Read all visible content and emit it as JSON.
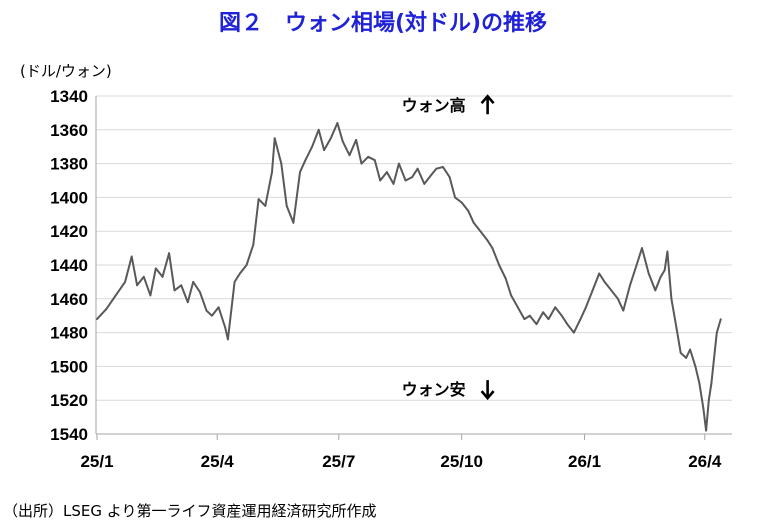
{
  "chart_data": {
    "type": "line",
    "title": "図２　ウォン相場(対ドル)の推移",
    "ylabel": "(ドル/ウォン)",
    "xlabel": "",
    "y_inverted": true,
    "ylim": [
      1340,
      1540
    ],
    "yticks": [
      1340,
      1360,
      1380,
      1400,
      1420,
      1440,
      1460,
      1480,
      1500,
      1520,
      1540
    ],
    "xlim": [
      "2025-01-01",
      "2026-04-15"
    ],
    "xticks": [
      {
        "label": "25/1",
        "date": "2025-01-01"
      },
      {
        "label": "25/4",
        "date": "2025-04-01"
      },
      {
        "label": "25/7",
        "date": "2025-07-01"
      },
      {
        "label": "25/10",
        "date": "2025-10-01"
      },
      {
        "label": "26/1",
        "date": "2026-01-01"
      },
      {
        "label": "26/4",
        "date": "2026-04-01"
      }
    ],
    "grid": true,
    "annotations": [
      {
        "text": "ウォン高",
        "arrow": "up",
        "at": {
          "date": "2025-09-10",
          "value": 1349
        }
      },
      {
        "text": "ウォン安",
        "arrow": "down",
        "at": {
          "date": "2025-09-10",
          "value": 1517
        }
      }
    ],
    "series": [
      {
        "color": "#595959",
        "points": [
          [
            "2025-01-01",
            1472
          ],
          [
            "2025-01-08",
            1466
          ],
          [
            "2025-01-15",
            1458
          ],
          [
            "2025-01-22",
            1450
          ],
          [
            "2025-01-27",
            1435
          ],
          [
            "2025-01-31",
            1452
          ],
          [
            "2025-02-05",
            1447
          ],
          [
            "2025-02-10",
            1458
          ],
          [
            "2025-02-14",
            1442
          ],
          [
            "2025-02-19",
            1447
          ],
          [
            "2025-02-24",
            1433
          ],
          [
            "2025-02-28",
            1455
          ],
          [
            "2025-03-05",
            1452
          ],
          [
            "2025-03-10",
            1462
          ],
          [
            "2025-03-14",
            1450
          ],
          [
            "2025-03-19",
            1456
          ],
          [
            "2025-03-24",
            1467
          ],
          [
            "2025-03-28",
            1470
          ],
          [
            "2025-04-02",
            1465
          ],
          [
            "2025-04-07",
            1477
          ],
          [
            "2025-04-09",
            1484
          ],
          [
            "2025-04-14",
            1450
          ],
          [
            "2025-04-18",
            1445
          ],
          [
            "2025-04-23",
            1440
          ],
          [
            "2025-04-28",
            1428
          ],
          [
            "2025-05-02",
            1401
          ],
          [
            "2025-05-07",
            1405
          ],
          [
            "2025-05-12",
            1385
          ],
          [
            "2025-05-14",
            1365
          ],
          [
            "2025-05-19",
            1380
          ],
          [
            "2025-05-23",
            1405
          ],
          [
            "2025-05-28",
            1415
          ],
          [
            "2025-06-02",
            1385
          ],
          [
            "2025-06-06",
            1378
          ],
          [
            "2025-06-11",
            1370
          ],
          [
            "2025-06-16",
            1360
          ],
          [
            "2025-06-20",
            1372
          ],
          [
            "2025-06-25",
            1365
          ],
          [
            "2025-06-30",
            1356
          ],
          [
            "2025-07-04",
            1367
          ],
          [
            "2025-07-09",
            1375
          ],
          [
            "2025-07-14",
            1366
          ],
          [
            "2025-07-18",
            1380
          ],
          [
            "2025-07-23",
            1376
          ],
          [
            "2025-07-28",
            1378
          ],
          [
            "2025-08-01",
            1390
          ],
          [
            "2025-08-06",
            1385
          ],
          [
            "2025-08-11",
            1392
          ],
          [
            "2025-08-15",
            1380
          ],
          [
            "2025-08-20",
            1390
          ],
          [
            "2025-08-25",
            1388
          ],
          [
            "2025-08-29",
            1383
          ],
          [
            "2025-09-03",
            1392
          ],
          [
            "2025-09-08",
            1387
          ],
          [
            "2025-09-12",
            1383
          ],
          [
            "2025-09-17",
            1382
          ],
          [
            "2025-09-22",
            1388
          ],
          [
            "2025-09-26",
            1400
          ],
          [
            "2025-10-01",
            1403
          ],
          [
            "2025-10-06",
            1408
          ],
          [
            "2025-10-10",
            1415
          ],
          [
            "2025-10-15",
            1420
          ],
          [
            "2025-10-20",
            1425
          ],
          [
            "2025-10-24",
            1430
          ],
          [
            "2025-10-29",
            1440
          ],
          [
            "2025-11-03",
            1448
          ],
          [
            "2025-11-07",
            1458
          ],
          [
            "2025-11-12",
            1465
          ],
          [
            "2025-11-17",
            1472
          ],
          [
            "2025-11-21",
            1470
          ],
          [
            "2025-11-26",
            1475
          ],
          [
            "2025-12-01",
            1468
          ],
          [
            "2025-12-05",
            1472
          ],
          [
            "2025-12-10",
            1465
          ],
          [
            "2025-12-15",
            1470
          ],
          [
            "2025-12-19",
            1475
          ],
          [
            "2025-12-24",
            1480
          ],
          [
            "2025-12-29",
            1472
          ],
          [
            "2026-01-02",
            1465
          ],
          [
            "2026-01-07",
            1455
          ],
          [
            "2026-01-12",
            1445
          ],
          [
            "2026-01-16",
            1450
          ],
          [
            "2026-01-21",
            1455
          ],
          [
            "2026-01-26",
            1460
          ],
          [
            "2026-01-30",
            1467
          ],
          [
            "2026-02-04",
            1452
          ],
          [
            "2026-02-09",
            1440
          ],
          [
            "2026-02-13",
            1430
          ],
          [
            "2026-02-18",
            1445
          ],
          [
            "2026-02-23",
            1455
          ],
          [
            "2026-02-27",
            1447
          ],
          [
            "2026-03-02",
            1443
          ],
          [
            "2026-03-04",
            1432
          ],
          [
            "2026-03-07",
            1460
          ],
          [
            "2026-03-11",
            1478
          ],
          [
            "2026-03-14",
            1492
          ],
          [
            "2026-03-18",
            1495
          ],
          [
            "2026-03-21",
            1490
          ],
          [
            "2026-03-25",
            1500
          ],
          [
            "2026-03-28",
            1510
          ],
          [
            "2026-03-31",
            1525
          ],
          [
            "2026-04-02",
            1538
          ],
          [
            "2026-04-04",
            1520
          ],
          [
            "2026-04-06",
            1510
          ],
          [
            "2026-04-08",
            1495
          ],
          [
            "2026-04-10",
            1480
          ],
          [
            "2026-04-13",
            1472
          ]
        ]
      }
    ]
  },
  "source_note": "（出所）LSEG より第一ライフ資産運用経済研究所作成",
  "colors": {
    "title": "#1f22d6",
    "series": "#595959",
    "grid": "#d9d9d9",
    "axis": "#a6a6a6",
    "text": "#000000"
  }
}
